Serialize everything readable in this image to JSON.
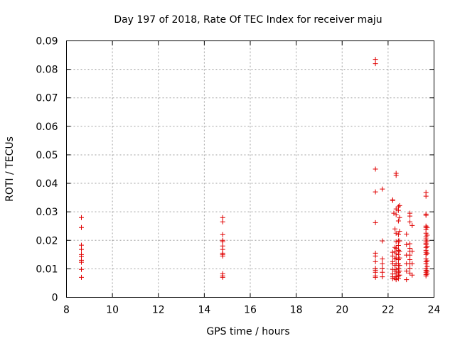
{
  "chart_data": {
    "type": "scatter",
    "title": "Day 197 of 2018, Rate Of TEC Index for receiver maju",
    "xlabel": "GPS time / hours",
    "ylabel": "ROTI / TECUs",
    "xlim": [
      8,
      24
    ],
    "ylim": [
      0,
      0.09
    ],
    "xticks": [
      "8",
      "10",
      "12",
      "14",
      "16",
      "18",
      "20",
      "22",
      "24"
    ],
    "yticks": [
      "0",
      "0.01",
      "0.02",
      "0.03",
      "0.04",
      "0.05",
      "0.06",
      "0.07",
      "0.08",
      "0.09"
    ],
    "grid": true,
    "marker": "+",
    "color": "#e00000",
    "series": [
      {
        "name": "ROTI",
        "points": [
          [
            8.65,
            0.028
          ],
          [
            8.65,
            0.0245
          ],
          [
            8.65,
            0.0183
          ],
          [
            8.65,
            0.0168
          ],
          [
            8.65,
            0.015
          ],
          [
            8.65,
            0.0143
          ],
          [
            8.65,
            0.013
          ],
          [
            8.65,
            0.0123
          ],
          [
            8.65,
            0.0098
          ],
          [
            8.65,
            0.007
          ],
          [
            14.8,
            0.028
          ],
          [
            14.8,
            0.0265
          ],
          [
            14.8,
            0.022
          ],
          [
            14.8,
            0.02
          ],
          [
            14.8,
            0.0195
          ],
          [
            14.8,
            0.018
          ],
          [
            14.8,
            0.0168
          ],
          [
            14.8,
            0.0155
          ],
          [
            14.8,
            0.015
          ],
          [
            14.8,
            0.0145
          ],
          [
            14.8,
            0.0083
          ],
          [
            14.8,
            0.0075
          ],
          [
            14.8,
            0.007
          ],
          [
            21.45,
            0.0835
          ],
          [
            21.45,
            0.082
          ],
          [
            21.45,
            0.045
          ],
          [
            21.45,
            0.037
          ],
          [
            21.45,
            0.0262
          ],
          [
            21.45,
            0.0155
          ],
          [
            21.45,
            0.0145
          ],
          [
            21.45,
            0.0125
          ],
          [
            21.45,
            0.0102
          ],
          [
            21.45,
            0.0095
          ],
          [
            21.45,
            0.0088
          ],
          [
            21.45,
            0.0075
          ],
          [
            21.45,
            0.007
          ],
          [
            21.75,
            0.038
          ],
          [
            21.75,
            0.0198
          ],
          [
            21.75,
            0.0135
          ],
          [
            21.75,
            0.0118
          ],
          [
            21.75,
            0.0102
          ],
          [
            21.75,
            0.0088
          ],
          [
            21.75,
            0.0072
          ],
          [
            22.2,
            0.0342
          ],
          [
            22.2,
            0.034
          ],
          [
            22.2,
            0.0158
          ],
          [
            22.2,
            0.0145
          ],
          [
            22.2,
            0.0125
          ],
          [
            22.2,
            0.0118
          ],
          [
            22.2,
            0.0098
          ],
          [
            22.2,
            0.0082
          ],
          [
            22.2,
            0.0072
          ],
          [
            22.2,
            0.0065
          ],
          [
            22.25,
            0.0295
          ],
          [
            22.3,
            0.024
          ],
          [
            22.3,
            0.0175
          ],
          [
            22.3,
            0.016
          ],
          [
            22.3,
            0.0135
          ],
          [
            22.3,
            0.0112
          ],
          [
            22.3,
            0.0092
          ],
          [
            22.3,
            0.0068
          ],
          [
            22.35,
            0.0435
          ],
          [
            22.35,
            0.0428
          ],
          [
            22.35,
            0.031
          ],
          [
            22.35,
            0.029
          ],
          [
            22.35,
            0.0225
          ],
          [
            22.35,
            0.0195
          ],
          [
            22.35,
            0.0172
          ],
          [
            22.35,
            0.0152
          ],
          [
            22.35,
            0.0138
          ],
          [
            22.35,
            0.0118
          ],
          [
            22.35,
            0.0098
          ],
          [
            22.35,
            0.0082
          ],
          [
            22.35,
            0.0072
          ],
          [
            22.35,
            0.0062
          ],
          [
            22.45,
            0.0318
          ],
          [
            22.45,
            0.0305
          ],
          [
            22.45,
            0.0268
          ],
          [
            22.45,
            0.022
          ],
          [
            22.45,
            0.0198
          ],
          [
            22.45,
            0.0182
          ],
          [
            22.45,
            0.0165
          ],
          [
            22.45,
            0.015
          ],
          [
            22.45,
            0.0132
          ],
          [
            22.45,
            0.0118
          ],
          [
            22.45,
            0.0102
          ],
          [
            22.45,
            0.0088
          ],
          [
            22.45,
            0.0075
          ],
          [
            22.45,
            0.0065
          ],
          [
            22.5,
            0.0322
          ],
          [
            22.5,
            0.028
          ],
          [
            22.5,
            0.0232
          ],
          [
            22.5,
            0.0198
          ],
          [
            22.5,
            0.0162
          ],
          [
            22.5,
            0.0138
          ],
          [
            22.5,
            0.0112
          ],
          [
            22.5,
            0.0092
          ],
          [
            22.5,
            0.0078
          ],
          [
            22.8,
            0.0222
          ],
          [
            22.8,
            0.0185
          ],
          [
            22.8,
            0.0148
          ],
          [
            22.8,
            0.0118
          ],
          [
            22.8,
            0.0092
          ],
          [
            22.8,
            0.0062
          ],
          [
            22.95,
            0.0295
          ],
          [
            22.95,
            0.0285
          ],
          [
            22.95,
            0.0265
          ],
          [
            22.95,
            0.0188
          ],
          [
            22.95,
            0.0172
          ],
          [
            22.95,
            0.0162
          ],
          [
            22.95,
            0.0148
          ],
          [
            22.95,
            0.0132
          ],
          [
            22.95,
            0.0118
          ],
          [
            22.95,
            0.0102
          ],
          [
            22.95,
            0.0085
          ],
          [
            23.05,
            0.0252
          ],
          [
            23.05,
            0.0162
          ],
          [
            23.05,
            0.0118
          ],
          [
            23.05,
            0.0078
          ],
          [
            23.65,
            0.0368
          ],
          [
            23.65,
            0.0355
          ],
          [
            23.65,
            0.0292
          ],
          [
            23.65,
            0.0288
          ],
          [
            23.65,
            0.025
          ],
          [
            23.65,
            0.0245
          ],
          [
            23.65,
            0.0238
          ],
          [
            23.65,
            0.0225
          ],
          [
            23.65,
            0.0212
          ],
          [
            23.65,
            0.0205
          ],
          [
            23.65,
            0.0198
          ],
          [
            23.65,
            0.019
          ],
          [
            23.65,
            0.0185
          ],
          [
            23.65,
            0.0175
          ],
          [
            23.65,
            0.0165
          ],
          [
            23.65,
            0.0158
          ],
          [
            23.65,
            0.015
          ],
          [
            23.65,
            0.0135
          ],
          [
            23.65,
            0.0125
          ],
          [
            23.65,
            0.0118
          ],
          [
            23.65,
            0.0102
          ],
          [
            23.65,
            0.0095
          ],
          [
            23.65,
            0.0088
          ],
          [
            23.65,
            0.008
          ],
          [
            23.65,
            0.0075
          ],
          [
            23.7,
            0.0245
          ],
          [
            23.7,
            0.0218
          ],
          [
            23.7,
            0.0198
          ],
          [
            23.7,
            0.0178
          ],
          [
            23.7,
            0.0155
          ],
          [
            23.7,
            0.0128
          ],
          [
            23.7,
            0.0108
          ],
          [
            23.7,
            0.0092
          ],
          [
            23.7,
            0.0082
          ]
        ]
      }
    ]
  }
}
